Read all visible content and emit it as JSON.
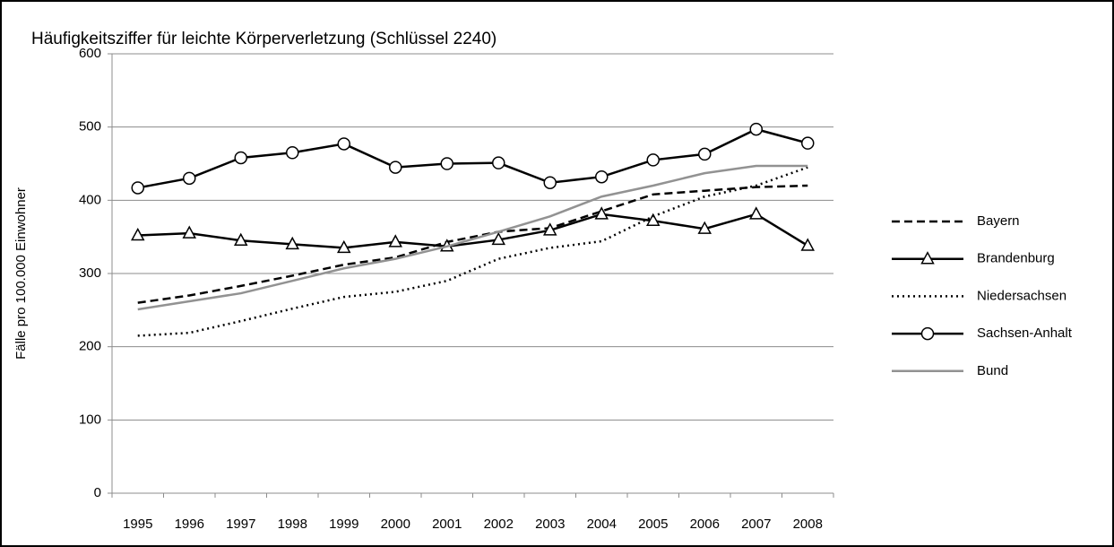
{
  "chart_data": {
    "type": "line",
    "title": "Häufigkeitsziffer für leichte Körperverletzung (Schlüssel 2240)",
    "y_label": "Fälle pro 100.000 Einwohner",
    "categories": [
      "1995",
      "1996",
      "1997",
      "1998",
      "1999",
      "2000",
      "2001",
      "2002",
      "2003",
      "2004",
      "2005",
      "2006",
      "2007",
      "2008"
    ],
    "ylim": [
      0,
      600
    ],
    "yticks": [
      0,
      100,
      200,
      300,
      400,
      500,
      600
    ],
    "grid": true,
    "legend": "right",
    "series": [
      {
        "name": "Bayern",
        "color": "#000000",
        "dash": "dashed",
        "values": [
          260,
          270,
          283,
          297,
          312,
          322,
          343,
          357,
          362,
          385,
          408,
          413,
          418,
          420
        ]
      },
      {
        "name": "Brandenburg",
        "color": "#000000",
        "marker": "triangle",
        "values": [
          352,
          355,
          345,
          340,
          335,
          343,
          337,
          346,
          359,
          381,
          372,
          361,
          381,
          338
        ]
      },
      {
        "name": "Niedersachsen",
        "color": "#000000",
        "dash": "dotted",
        "values": [
          215,
          219,
          235,
          252,
          268,
          275,
          290,
          320,
          335,
          344,
          378,
          405,
          420,
          445
        ]
      },
      {
        "name": "Sachsen-Anhalt",
        "color": "#000000",
        "marker": "circle",
        "values": [
          417,
          430,
          458,
          465,
          477,
          445,
          450,
          451,
          424,
          432,
          455,
          463,
          497,
          478
        ]
      },
      {
        "name": "Bund",
        "color": "#929292",
        "values": [
          251,
          262,
          273,
          290,
          307,
          320,
          337,
          357,
          378,
          405,
          420,
          437,
          447,
          447
        ]
      }
    ]
  }
}
